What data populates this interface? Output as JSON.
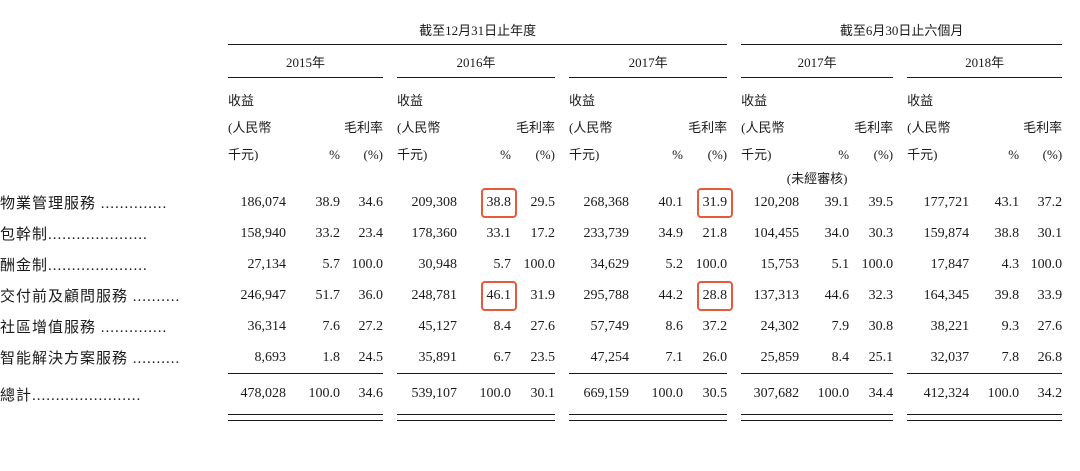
{
  "header": {
    "fiscal_period": "截至12月31日止年度",
    "half_period": "截至6月30日止六個月",
    "years": [
      "2015年",
      "2016年",
      "2017年",
      "2017年",
      "2018年"
    ],
    "col_revenue": [
      "收益",
      "(人民幣",
      "千元)"
    ],
    "col_percent": "%",
    "col_margin": [
      "毛利率",
      "(%)"
    ],
    "unaudited_note": "(未經審核)"
  },
  "rows": [
    {
      "label": "物業管理服務 ..............",
      "values": [
        "186,074",
        "38.9",
        "34.6",
        "209,308",
        "38.8",
        "29.5",
        "268,368",
        "40.1",
        "31.9",
        "120,208",
        "39.1",
        "39.5",
        "177,721",
        "43.1",
        "37.2"
      ]
    },
    {
      "label": "包幹制.....................",
      "values": [
        "158,940",
        "33.2",
        "23.4",
        "178,360",
        "33.1",
        "17.2",
        "233,739",
        "34.9",
        "21.8",
        "104,455",
        "34.0",
        "30.3",
        "159,874",
        "38.8",
        "30.1"
      ]
    },
    {
      "label": "酬金制.....................",
      "values": [
        "27,134",
        "5.7",
        "100.0",
        "30,948",
        "5.7",
        "100.0",
        "34,629",
        "5.2",
        "100.0",
        "15,753",
        "5.1",
        "100.0",
        "17,847",
        "4.3",
        "100.0"
      ]
    },
    {
      "label": "交付前及顧問服務 ..........",
      "values": [
        "246,947",
        "51.7",
        "36.0",
        "248,781",
        "46.1",
        "31.9",
        "295,788",
        "44.2",
        "28.8",
        "137,313",
        "44.6",
        "32.3",
        "164,345",
        "39.8",
        "33.9"
      ]
    },
    {
      "label": "社區增值服務 ..............",
      "values": [
        "36,314",
        "7.6",
        "27.2",
        "45,127",
        "8.4",
        "27.6",
        "57,749",
        "8.6",
        "37.2",
        "24,302",
        "7.9",
        "30.8",
        "38,221",
        "9.3",
        "27.6"
      ]
    },
    {
      "label": "智能解決方案服務 ..........",
      "values": [
        "8,693",
        "1.8",
        "24.5",
        "35,891",
        "6.7",
        "23.5",
        "47,254",
        "7.1",
        "26.0",
        "25,859",
        "8.4",
        "25.1",
        "32,037",
        "7.8",
        "26.8"
      ]
    }
  ],
  "total": {
    "label": "總計.......................",
    "values": [
      "478,028",
      "100.0",
      "34.6",
      "539,107",
      "100.0",
      "30.1",
      "669,159",
      "100.0",
      "30.5",
      "307,682",
      "100.0",
      "34.4",
      "412,324",
      "100.0",
      "34.2"
    ]
  },
  "colors": {
    "highlight_border": "#e55a3b",
    "text": "#1a1a1a"
  }
}
